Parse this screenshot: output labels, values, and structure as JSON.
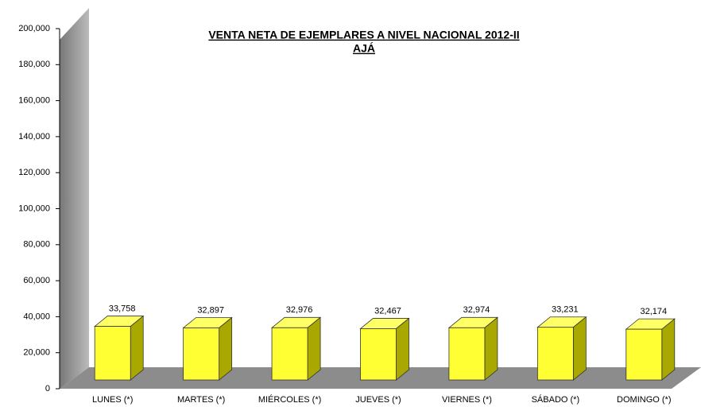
{
  "chart_data": {
    "type": "bar3d",
    "title": "VENTA NETA DE EJEMPLARES A NIVEL NACIONAL 2012-II",
    "subtitle": "AJÁ",
    "categories": [
      "LUNES (*)",
      "MARTES (*)",
      "MIÉRCOLES (*)",
      "JUEVES (*)",
      "VIERNES (*)",
      "SÁBADO (*)",
      "DOMINGO (*)"
    ],
    "values": [
      33758,
      32897,
      32976,
      32467,
      32974,
      33231,
      32174
    ],
    "value_labels": [
      "33,758",
      "32,897",
      "32,976",
      "32,467",
      "32,974",
      "33,231",
      "32,174"
    ],
    "color": "#ffff33",
    "ylim": [
      0,
      200000
    ],
    "yticks": [
      0,
      {
        "value": 20000,
        "label": "20,000"
      },
      {
        "value": 40000,
        "label": "40,000"
      },
      {
        "value": 60000,
        "label": "60,000"
      },
      {
        "value": 80000,
        "label": "80,000"
      },
      {
        "value": 100000,
        "label": "100,000"
      },
      {
        "value": 120000,
        "label": "120,000"
      },
      {
        "value": 140000,
        "label": "140,000"
      },
      {
        "value": 160000,
        "label": "160,000"
      },
      {
        "value": 180000,
        "label": "180,000"
      },
      {
        "value": 200000,
        "label": "200,000"
      }
    ]
  }
}
